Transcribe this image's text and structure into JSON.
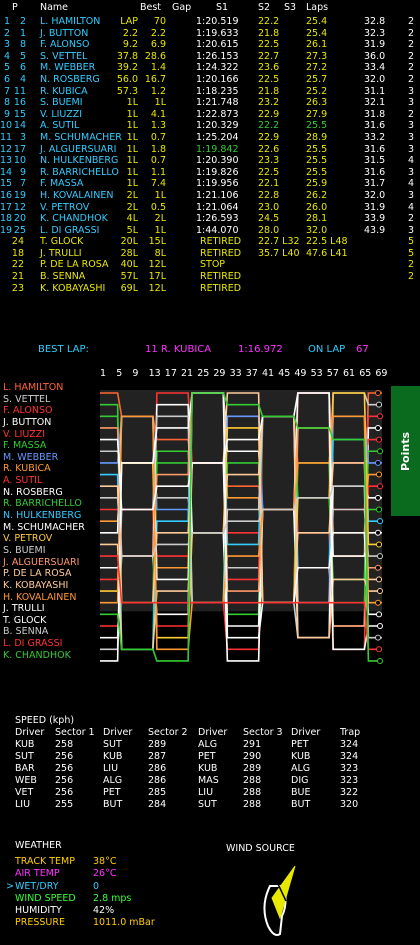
{
  "header": {
    "p": "P",
    "name": "Name",
    "best": "Best",
    "gap": "Gap",
    "s1": "S1",
    "s2": "S2",
    "s3": "S3",
    "laps": "Laps"
  },
  "timing_rows": [
    {
      "pos": "1",
      "num": "2",
      "name": "L. HAMILTON",
      "best": "LAP",
      "gap": "70",
      "s1": "1:20.519",
      "s2": "22.2",
      "s3": "",
      "laps": "25.4",
      "t": "32.8",
      "pts": "2",
      "color": "#33ccff",
      "s1c": "#fff",
      "s2c": "#e8e800",
      "lapc": "#e8e800",
      "bestc": "#e8e800",
      "gapc": "#e8e800"
    },
    {
      "pos": "2",
      "num": "1",
      "name": "J. BUTTON",
      "best": "2.2",
      "gap": "2.2",
      "s1": "1:19.633",
      "s2": "21.8",
      "s3": "",
      "laps": "25.4",
      "t": "32.3",
      "pts": "2",
      "color": "#33ccff",
      "s1c": "#fff",
      "s2c": "#e8e800",
      "lapc": "#e8e800",
      "bestc": "#e8e800",
      "gapc": "#e8e800"
    },
    {
      "pos": "3",
      "num": "8",
      "name": "F. ALONSO",
      "best": "9.2",
      "gap": "6.9",
      "s1": "1:20.615",
      "s2": "22.5",
      "s3": "",
      "laps": "26.1",
      "t": "31.9",
      "pts": "2",
      "color": "#33ccff",
      "s1c": "#fff",
      "s2c": "#e8e800",
      "lapc": "#e8e800",
      "bestc": "#e8e800",
      "gapc": "#e8e800"
    },
    {
      "pos": "4",
      "num": "5",
      "name": "S. VETTEL",
      "best": "37.8",
      "gap": "28.6",
      "s1": "1:26.153",
      "s2": "22.7",
      "s3": "",
      "laps": "27.3",
      "t": "36.0",
      "pts": "2",
      "color": "#33ccff",
      "s1c": "#fff",
      "s2c": "#e8e800",
      "lapc": "#e8e800",
      "bestc": "#e8e800",
      "gapc": "#e8e800"
    },
    {
      "pos": "5",
      "num": "6",
      "name": "M. WEBBER",
      "best": "39.2",
      "gap": "1.4",
      "s1": "1:24.322",
      "s2": "23.6",
      "s3": "",
      "laps": "27.2",
      "t": "33.4",
      "pts": "2",
      "color": "#33ccff",
      "s1c": "#fff",
      "s2c": "#e8e800",
      "lapc": "#e8e800",
      "bestc": "#e8e800",
      "gapc": "#e8e800"
    },
    {
      "pos": "6",
      "num": "4",
      "name": "N. ROSBERG",
      "best": "56.0",
      "gap": "16.7",
      "s1": "1:20.166",
      "s2": "22.5",
      "s3": "",
      "laps": "25.7",
      "t": "32.0",
      "pts": "2",
      "color": "#33ccff",
      "s1c": "#fff",
      "s2c": "#e8e800",
      "lapc": "#e8e800",
      "bestc": "#e8e800",
      "gapc": "#e8e800"
    },
    {
      "pos": "7",
      "num": "11",
      "name": "R. KUBICA",
      "best": "57.3",
      "gap": "1.2",
      "s1": "1:18.235",
      "s2": "21.8",
      "s3": "",
      "laps": "25.2",
      "t": "31.1",
      "pts": "3",
      "color": "#33ccff",
      "s1c": "#fff",
      "s2c": "#e8e800",
      "lapc": "#e8e800",
      "bestc": "#e8e800",
      "gapc": "#e8e800"
    },
    {
      "pos": "8",
      "num": "16",
      "name": "S. BUEMI",
      "best": "1L",
      "gap": "1L",
      "s1": "1:21.748",
      "s2": "23.2",
      "s3": "",
      "laps": "26.3",
      "t": "32.1",
      "pts": "3",
      "color": "#33ccff",
      "s1c": "#fff",
      "s2c": "#e8e800",
      "lapc": "#e8e800",
      "bestc": "#e8e800",
      "gapc": "#e8e800"
    },
    {
      "pos": "9",
      "num": "15",
      "name": "V. LIUZZI",
      "best": "1L",
      "gap": "4.1",
      "s1": "1:22.873",
      "s2": "22.9",
      "s3": "",
      "laps": "27.9",
      "t": "31.8",
      "pts": "2",
      "color": "#33ccff",
      "s1c": "#fff",
      "s2c": "#e8e800",
      "lapc": "#e8e800",
      "bestc": "#e8e800",
      "gapc": "#e8e800"
    },
    {
      "pos": "10",
      "num": "14",
      "name": "A. SUTIL",
      "best": "1L",
      "gap": "1.3",
      "s1": "1:20.329",
      "s2": "22.2",
      "s3": "",
      "laps": "25.5",
      "t": "31.6",
      "pts": "3",
      "color": "#33ccff",
      "s1c": "#fff",
      "s2c": "#33cc33",
      "lapc": "#33cc33",
      "bestc": "#e8e800",
      "gapc": "#e8e800"
    },
    {
      "pos": "11",
      "num": "3",
      "name": "M. SCHUMACHER",
      "best": "1L",
      "gap": "0.7",
      "s1": "1:25.204",
      "s2": "22.9",
      "s3": "",
      "laps": "28.9",
      "t": "33.2",
      "pts": "3",
      "color": "#33ccff",
      "s1c": "#fff",
      "s2c": "#e8e800",
      "lapc": "#e8e800",
      "bestc": "#e8e800",
      "gapc": "#e8e800"
    },
    {
      "pos": "12",
      "num": "17",
      "name": "J. ALGUERSUARI",
      "best": "1L",
      "gap": "1.8",
      "s1": "1:19.842",
      "s2": "22.6",
      "s3": "",
      "laps": "25.5",
      "t": "31.6",
      "pts": "3",
      "color": "#33ccff",
      "s1c": "#33cc33",
      "s2c": "#e8e800",
      "lapc": "#e8e800",
      "bestc": "#e8e800",
      "gapc": "#e8e800"
    },
    {
      "pos": "13",
      "num": "10",
      "name": "N. HULKENBERG",
      "best": "1L",
      "gap": "0.7",
      "s1": "1:20.390",
      "s2": "23.3",
      "s3": "",
      "laps": "25.5",
      "t": "31.5",
      "pts": "4",
      "color": "#33ccff",
      "s1c": "#fff",
      "s2c": "#e8e800",
      "lapc": "#e8e800",
      "bestc": "#e8e800",
      "gapc": "#e8e800"
    },
    {
      "pos": "14",
      "num": "9",
      "name": "R. BARRICHELLO",
      "best": "1L",
      "gap": "1.1",
      "s1": "1:19.826",
      "s2": "22.5",
      "s3": "",
      "laps": "25.5",
      "t": "31.6",
      "pts": "3",
      "color": "#33ccff",
      "s1c": "#fff",
      "s2c": "#e8e800",
      "lapc": "#e8e800",
      "bestc": "#e8e800",
      "gapc": "#e8e800"
    },
    {
      "pos": "15",
      "num": "7",
      "name": "F. MASSA",
      "best": "1L",
      "gap": "7.4",
      "s1": "1:19.956",
      "s2": "22.1",
      "s3": "",
      "laps": "25.9",
      "t": "31.7",
      "pts": "4",
      "color": "#33ccff",
      "s1c": "#fff",
      "s2c": "#e8e800",
      "lapc": "#e8e800",
      "bestc": "#e8e800",
      "gapc": "#e8e800"
    },
    {
      "pos": "16",
      "num": "19",
      "name": "H. KOVALAINEN",
      "best": "2L",
      "gap": "1L",
      "s1": "1:21.106",
      "s2": "22.8",
      "s3": "",
      "laps": "26.2",
      "t": "32.0",
      "pts": "3",
      "color": "#33ccff",
      "s1c": "#fff",
      "s2c": "#e8e800",
      "lapc": "#e8e800",
      "bestc": "#e8e800",
      "gapc": "#e8e800"
    },
    {
      "pos": "17",
      "num": "12",
      "name": "V. PETROV",
      "best": "2L",
      "gap": "0.5",
      "s1": "1:21.064",
      "s2": "23.0",
      "s3": "",
      "laps": "26.0",
      "t": "31.9",
      "pts": "4",
      "color": "#33ccff",
      "s1c": "#fff",
      "s2c": "#e8e800",
      "lapc": "#e8e800",
      "bestc": "#e8e800",
      "gapc": "#e8e800"
    },
    {
      "pos": "18",
      "num": "20",
      "name": "K. CHANDHOK",
      "best": "4L",
      "gap": "2L",
      "s1": "1:26.593",
      "s2": "24.5",
      "s3": "",
      "laps": "28.1",
      "t": "33.9",
      "pts": "2",
      "color": "#33ccff",
      "s1c": "#fff",
      "s2c": "#e8e800",
      "lapc": "#e8e800",
      "bestc": "#e8e800",
      "gapc": "#e8e800"
    },
    {
      "pos": "19",
      "num": "25",
      "name": "L. DI GRASSI",
      "best": "5L",
      "gap": "1L",
      "s1": "1:44.070",
      "s2": "28.0",
      "s3": "",
      "laps": "32.0",
      "t": "43.9",
      "pts": "3",
      "color": "#33ccff",
      "s1c": "#fff",
      "s2c": "#e8e800",
      "lapc": "#e8e800",
      "bestc": "#e8e800",
      "gapc": "#e8e800"
    }
  ],
  "retired_rows": [
    {
      "num": "24",
      "name": "T. GLOCK",
      "best": "20L",
      "gap": "15L",
      "s1": "RETIRED",
      "s2": "22.7 L32",
      "laps": "22.5 L48",
      "pts": "5"
    },
    {
      "num": "18",
      "name": "J. TRULLI",
      "best": "28L",
      "gap": "8L",
      "s1": "RETIRED",
      "s2": "35.7 L40",
      "laps": "47.6 L41",
      "pts": "5"
    },
    {
      "num": "22",
      "name": "P. DE LA ROSA",
      "best": "40L",
      "gap": "12L",
      "s1": "STOP",
      "s2": "",
      "laps": "",
      "pts": "2"
    },
    {
      "num": "21",
      "name": "B. SENNA",
      "best": "57L",
      "gap": "17L",
      "s1": "RETIRED",
      "s2": "",
      "laps": "",
      "pts": "2"
    },
    {
      "num": "23",
      "name": "K. KOBAYASHI",
      "best": "69L",
      "gap": "12L",
      "s1": "RETIRED",
      "s2": "",
      "laps": "",
      "pts": ""
    }
  ],
  "best_lap": {
    "label": "BEST LAP:",
    "driver": "11 R. KUBICA",
    "time": "1:16.972",
    "on_lap_label": "ON LAP",
    "lap": "67"
  },
  "chart_data": {
    "type": "line",
    "x_ticks": [
      "1",
      "5",
      "9",
      "13",
      "17",
      "21",
      "25",
      "29",
      "33",
      "37",
      "41",
      "45",
      "49",
      "53",
      "57",
      "61",
      "65",
      "69"
    ],
    "points_label": "Points",
    "drivers": [
      {
        "name": "L. HAMILTON",
        "color": "#ff6633"
      },
      {
        "name": "S. VETTEL",
        "color": "#cccccc"
      },
      {
        "name": "F. ALONSO",
        "color": "#ff3333"
      },
      {
        "name": "J. BUTTON",
        "color": "#ffffff"
      },
      {
        "name": "V. LIUZZI",
        "color": "#ff3333"
      },
      {
        "name": "F. MASSA",
        "color": "#33cc33"
      },
      {
        "name": "M. WEBBER",
        "color": "#6699ff"
      },
      {
        "name": "R. KUBICA",
        "color": "#ff9933"
      },
      {
        "name": "A. SUTIL",
        "color": "#ff3333"
      },
      {
        "name": "N. ROSBERG",
        "color": "#ffffff"
      },
      {
        "name": "R. BARRICHELLO",
        "color": "#33cc33"
      },
      {
        "name": "N. HULKENBERG",
        "color": "#33ccff"
      },
      {
        "name": "M. SCHUMACHER",
        "color": "#ffffff"
      },
      {
        "name": "V. PETROV",
        "color": "#ffcc33"
      },
      {
        "name": "S. BUEMI",
        "color": "#cccccc"
      },
      {
        "name": "J. ALGUERSUARI",
        "color": "#ff9966"
      },
      {
        "name": "P. DE LA ROSA",
        "color": "#ffcc99"
      },
      {
        "name": "K. KOBAYASHI",
        "color": "#ffcc99"
      },
      {
        "name": "H. KOVALAINEN",
        "color": "#ff9933"
      },
      {
        "name": "J. TRULLI",
        "color": "#ffffff"
      },
      {
        "name": "T. GLOCK",
        "color": "#ffffff"
      },
      {
        "name": "B. SENNA",
        "color": "#cccccc"
      },
      {
        "name": "L. DI GRASSI",
        "color": "#ff3333"
      },
      {
        "name": "K. CHANDHOK",
        "color": "#33cc33"
      }
    ]
  },
  "speed": {
    "title": "SPEED (kph)",
    "headers": [
      "Driver",
      "Sector 1",
      "Driver",
      "Sector 2",
      "Driver",
      "Sector 3",
      "Driver",
      "Trap"
    ],
    "rows": [
      [
        "KUB",
        "258",
        "SUT",
        "289",
        "ALG",
        "291",
        "PET",
        "324"
      ],
      [
        "SUT",
        "256",
        "KUB",
        "287",
        "PET",
        "290",
        "KUB",
        "324"
      ],
      [
        "BAR",
        "256",
        "LIU",
        "286",
        "KUB",
        "289",
        "ALG",
        "323"
      ],
      [
        "WEB",
        "256",
        "ALG",
        "286",
        "MAS",
        "288",
        "DIG",
        "323"
      ],
      [
        "VET",
        "256",
        "PET",
        "285",
        "LIU",
        "288",
        "BUE",
        "322"
      ],
      [
        "LIU",
        "255",
        "BUT",
        "284",
        "SUT",
        "288",
        "BUT",
        "320"
      ]
    ]
  },
  "weather": {
    "title": "WEATHER",
    "rows": [
      {
        "label": "TRACK TEMP",
        "value": "38°C",
        "color": "#ffcc00",
        "prefix": ""
      },
      {
        "label": "AIR TEMP",
        "value": "26°C",
        "color": "#ff33ff",
        "prefix": ""
      },
      {
        "label": "WET/DRY",
        "value": "0",
        "color": "#33ccff",
        "prefix": ">"
      },
      {
        "label": "WIND SPEED",
        "value": "2.8 mps",
        "color": "#33ff33",
        "prefix": ""
      },
      {
        "label": "HUMIDITY",
        "value": "42%",
        "color": "#ffffff",
        "prefix": ""
      },
      {
        "label": "PRESSURE",
        "value": "1011.0 mBar",
        "color": "#ffcc00",
        "prefix": ""
      }
    ],
    "wind_source_label": "WIND SOURCE"
  }
}
